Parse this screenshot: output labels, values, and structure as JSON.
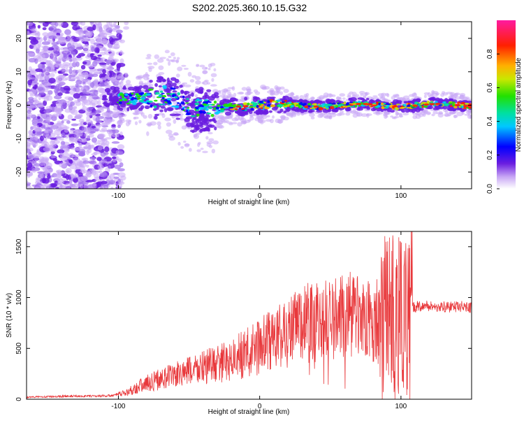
{
  "title": "S202.2025.360.10.15.G32",
  "chart_data": [
    {
      "type": "heatmap",
      "xlabel": "Height of straight line (km)",
      "ylabel": "Frequency (Hz)",
      "xlim": [
        -165,
        150
      ],
      "ylim": [
        -25,
        25
      ],
      "xticks": [
        -100,
        0,
        100
      ],
      "yticks": [
        -20,
        -10,
        0,
        10,
        20
      ],
      "colorbar": {
        "label": "Normalized spectral amplitude",
        "range": [
          0,
          1
        ],
        "ticks": [
          "0.0",
          "0.2",
          "0.4",
          "0.6",
          "0.8"
        ],
        "tick_values": [
          0.0,
          0.2,
          0.4,
          0.6,
          0.8
        ]
      },
      "features": {
        "noise_region_x": [
          -165,
          -97
        ],
        "signal_band_center_hz": 0,
        "signal_band_start_x": -110,
        "signal_band_end_x": 150
      }
    },
    {
      "type": "line",
      "xlabel": "Height of straight line (km)",
      "ylabel": "SNR (10 * v/v)",
      "xlim": [
        -165,
        150
      ],
      "ylim": [
        0,
        1650
      ],
      "xticks": [
        -100,
        0,
        100
      ],
      "yticks": [
        0,
        500,
        1000,
        1500
      ],
      "series": [
        {
          "name": "SNR",
          "color": "#e8383b",
          "x": [
            -165,
            -150,
            -135,
            -120,
            -105,
            -95,
            -85,
            -75,
            -65,
            -55,
            -45,
            -35,
            -25,
            -15,
            -5,
            5,
            15,
            25,
            35,
            45,
            55,
            65,
            75,
            85,
            95,
            105,
            108,
            115,
            125,
            135,
            145,
            150
          ],
          "y": [
            20,
            25,
            30,
            30,
            35,
            60,
            130,
            180,
            220,
            250,
            300,
            330,
            360,
            420,
            480,
            560,
            620,
            700,
            750,
            780,
            800,
            820,
            780,
            760,
            800,
            750,
            900,
            920,
            910,
            905,
            915,
            900
          ]
        }
      ]
    }
  ]
}
